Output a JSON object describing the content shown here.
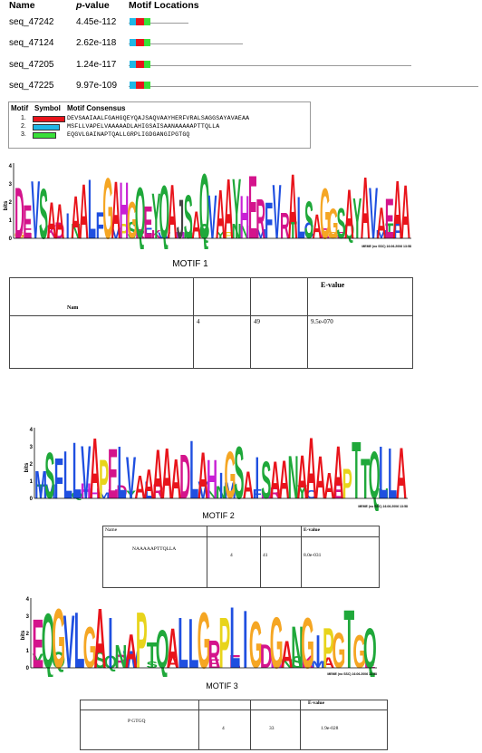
{
  "table_header": {
    "name": "Name",
    "pvalue_p": "p",
    "pvalue_rest": "-value",
    "locations": "Motif Locations"
  },
  "sequences": [
    {
      "name": "seq_47242",
      "pvalue": "4.45e-112"
    },
    {
      "name": "seq_47124",
      "pvalue": "2.62e-118"
    },
    {
      "name": "seq_47205",
      "pvalue": "1.24e-117"
    },
    {
      "name": "seq_47225",
      "pvalue": "9.97e-109"
    }
  ],
  "legend": {
    "h_motif": "Motif",
    "h_symbol": "Symbol",
    "h_consensus": "Motif Consensus",
    "rows": [
      {
        "num": "1.",
        "color": "#e8141b",
        "consensus": "DEVSAAIAALFGAHGQEYQAJSAQVAAYHERFVRALSAGGSAYAVAEAA"
      },
      {
        "num": "2.",
        "color": "#1fb7e6",
        "consensus": "MSFLLVAPELVAAAAADLAHIGSAISAANAAAAAPTTQLLA"
      },
      {
        "num": "3.",
        "color": "#39e039",
        "consensus": "EQGVLGAINAPTQALLGRPLIGDGANGIPGTGQ"
      }
    ]
  },
  "logo1": {
    "axis_label": "bits",
    "ticks": [
      "0",
      "1",
      "2",
      "3",
      "4"
    ],
    "credit": "MEME (no SSC) 16.06.2006 13:58"
  },
  "motif1": {
    "title": "MOTIF 1",
    "col_e": "E-value",
    "row1_name": "Nam",
    "row2_a": "4",
    "row2_b": "49",
    "row2_e": "9.5e-070"
  },
  "logo2": {
    "axis_label": "bits",
    "ticks": [
      "0",
      "1",
      "2",
      "3",
      "4"
    ],
    "credit": "MEME (no SSC) 16.06.2006 13:58"
  },
  "motif2": {
    "title": "MOTIF 2",
    "col_name": "Name",
    "col_e": "E-value",
    "seq": "NAAAAAPTTQLLA",
    "a": "4",
    "b": "41",
    "e": "8.0e-031"
  },
  "logo3": {
    "axis_label": "bits",
    "ticks": [
      "0",
      "1",
      "2",
      "3",
      "4"
    ],
    "credit": "MEME (no SSC) 16.06.2006 13:58"
  },
  "motif3": {
    "title": "MOTIF 3",
    "col_e": "E-value",
    "seq": "P GTGQ",
    "a": "4",
    "b": "33",
    "e": "1.9e-028"
  },
  "colors": {
    "motif1": "#e8141b",
    "motif2": "#1fb7e6",
    "motif3": "#39e039"
  }
}
